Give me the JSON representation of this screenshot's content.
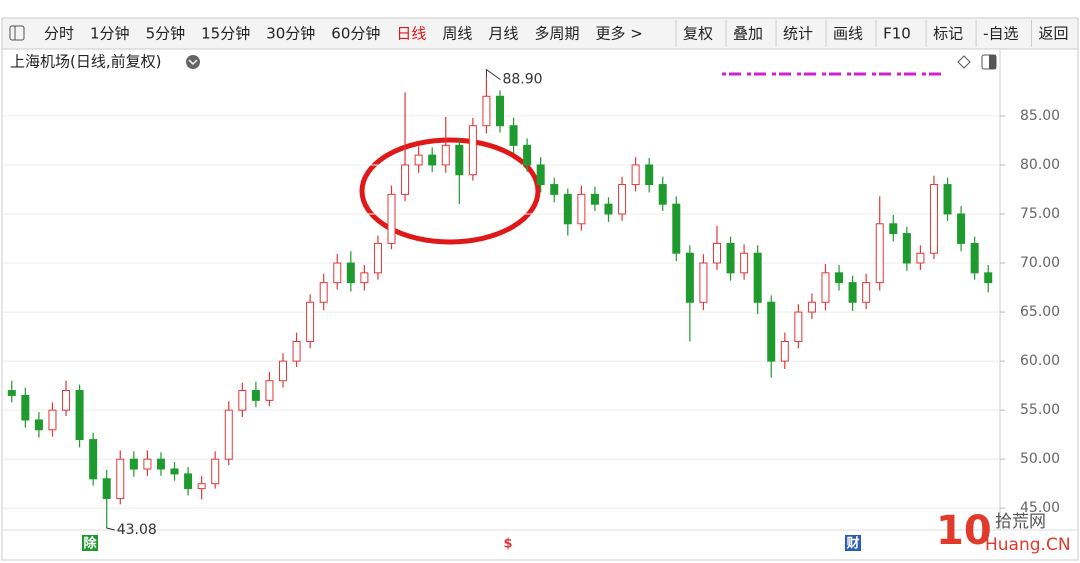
{
  "toolbar": {
    "periods": [
      "分时",
      "1分钟",
      "5分钟",
      "15分钟",
      "30分钟",
      "60分钟",
      "日线",
      "周线",
      "月线",
      "多周期",
      "更多 >"
    ],
    "active_period": 6,
    "tools": [
      "复权",
      "叠加",
      "统计",
      "画线",
      "F10",
      "标记",
      "-自选",
      "返回"
    ]
  },
  "watermark": {
    "logo": "10",
    "name": "拾荒网",
    "site": "Huang.CN"
  },
  "chart_data": {
    "type": "candlestick",
    "title": "上海机场(日线,前复权)",
    "up_color": "#e0383a",
    "down_color": "#1f9a2e",
    "open": [
      57,
      56.5,
      54,
      53,
      55,
      57,
      52,
      48,
      46,
      50,
      49,
      50,
      49,
      48.5,
      47,
      47.5,
      50,
      55,
      57,
      56,
      58,
      60,
      62,
      66,
      68,
      70,
      68,
      69,
      72,
      77,
      80,
      81,
      80,
      82,
      79,
      84,
      87,
      84,
      82,
      80,
      78,
      77,
      74,
      77,
      76,
      75,
      78,
      80,
      78,
      76,
      71,
      66,
      70,
      72,
      69,
      71,
      66,
      60,
      62,
      65,
      66,
      69,
      68,
      66,
      68,
      74,
      73,
      70,
      71,
      78,
      75,
      72,
      69
    ],
    "high": [
      58,
      57.3,
      54.8,
      55.8,
      58,
      57.6,
      52.7,
      48.9,
      50.9,
      50.8,
      50.9,
      50.7,
      49.7,
      49.2,
      48.3,
      50.8,
      55.9,
      57.8,
      57.9,
      58.9,
      60.8,
      62.9,
      66.8,
      68.9,
      70.9,
      71.2,
      69.8,
      72.8,
      77.9,
      87.4,
      81.9,
      81.8,
      84.9,
      82.7,
      84.8,
      88.9,
      87.6,
      84.8,
      82.7,
      80.8,
      78.7,
      77.6,
      77.9,
      77.8,
      76.7,
      78.8,
      80.8,
      80.7,
      78.8,
      76.8,
      71.8,
      70.9,
      73.8,
      72.7,
      71.9,
      71.8,
      66.7,
      62.9,
      65.8,
      66.9,
      69.9,
      69.8,
      68.7,
      68.9,
      76.8,
      74.9,
      73.7,
      71.8,
      78.9,
      78.7,
      75.8,
      72.7,
      69.8
    ],
    "low": [
      55.8,
      53.2,
      52.2,
      52.3,
      54.4,
      51.2,
      47.3,
      43.08,
      45.4,
      48.2,
      48.3,
      48.3,
      47.8,
      46.3,
      45.9,
      47,
      49.4,
      54.3,
      55.3,
      55.4,
      57.3,
      59.4,
      61.3,
      65.2,
      67.3,
      67.1,
      67.2,
      68.3,
      71.4,
      76.3,
      79.2,
      79.3,
      79.2,
      76,
      78.4,
      83.2,
      83.3,
      81.2,
      79.3,
      77.2,
      76.2,
      72.8,
      73.3,
      75.3,
      74.2,
      74.3,
      77.3,
      77.2,
      75.3,
      70.2,
      62,
      65.2,
      69.3,
      68.2,
      68.3,
      64.8,
      58.3,
      59.2,
      61.3,
      64.3,
      65.2,
      67.2,
      65.1,
      65.3,
      67.2,
      72.2,
      69.2,
      69.3,
      70.4,
      74.3,
      71.2,
      68.3,
      67
    ],
    "close": [
      56.5,
      54,
      53,
      55,
      57,
      52,
      48,
      46,
      50,
      49,
      50,
      49,
      48.5,
      47,
      47.5,
      50,
      55,
      57,
      56,
      58,
      60,
      62,
      66,
      68,
      70,
      68,
      69,
      72,
      77,
      80,
      81,
      80,
      82,
      79,
      84,
      87,
      84,
      82,
      80,
      78,
      77,
      74,
      77,
      76,
      75,
      78,
      80,
      78,
      76,
      71,
      66,
      70,
      72,
      69,
      71,
      66,
      60,
      62,
      65,
      66,
      69,
      68,
      66,
      68,
      74,
      73,
      70,
      71,
      78,
      75,
      72,
      69,
      68
    ],
    "ylim": [
      43.8,
      90.7
    ],
    "yticks": [
      {
        "value": 45,
        "label": "45.00"
      },
      {
        "value": 50,
        "label": "50.00"
      },
      {
        "value": 55,
        "label": "55.00"
      },
      {
        "value": 60,
        "label": "60.00"
      },
      {
        "value": 65,
        "label": "65.00"
      },
      {
        "value": 70,
        "label": "70.00"
      },
      {
        "value": 75,
        "label": "75.00"
      },
      {
        "value": 80,
        "label": "80.00"
      },
      {
        "value": 85,
        "label": "85.00"
      }
    ],
    "grid": true,
    "annotations": [
      {
        "value": 88.9,
        "label": "88.90"
      },
      {
        "value": 43.08,
        "label": "43.08"
      }
    ],
    "events": [
      {
        "label": "除",
        "color": "#1f9a2e"
      },
      {
        "label": "$",
        "color": "#e0383a"
      },
      {
        "label": "财",
        "color": "#2a5db0"
      }
    ]
  }
}
